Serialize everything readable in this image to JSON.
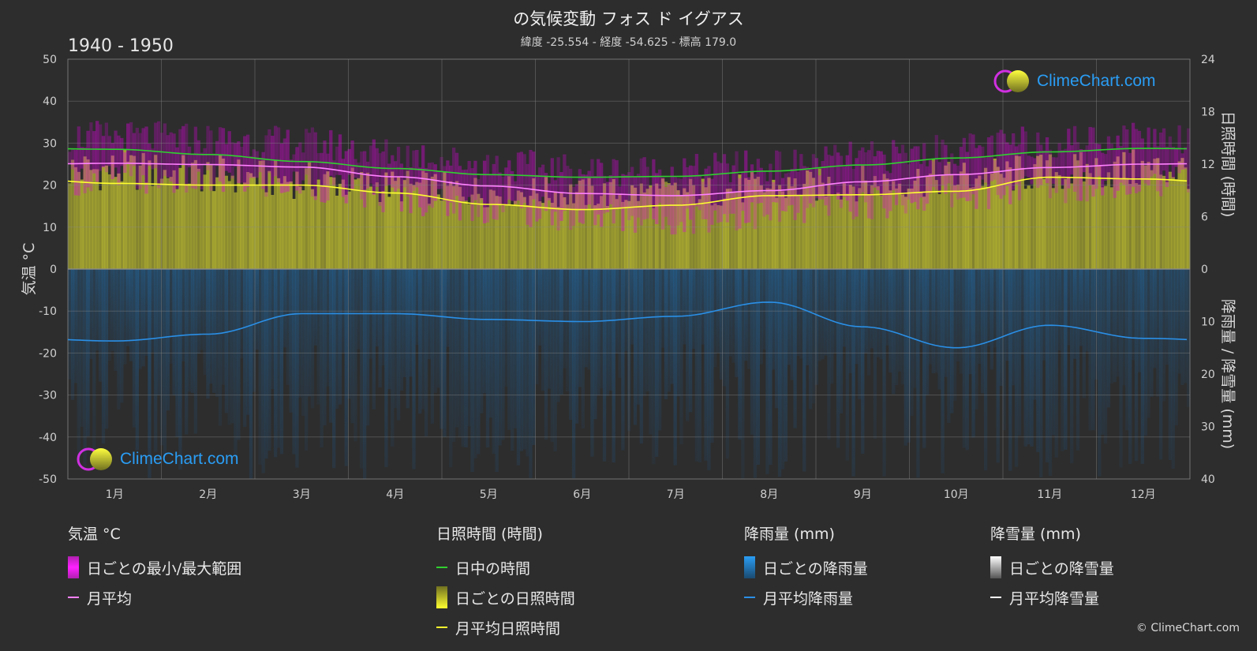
{
  "header": {
    "title": "の気候変動 フォス ド イグアス",
    "subtitle": "緯度 -25.554 - 経度 -54.625 - 標高 179.0",
    "period": "1940 - 1950"
  },
  "copyright": "© ClimeChart.com",
  "logo_text": "ClimeChart.com",
  "chart_data": {
    "type": "area",
    "months": [
      "1月",
      "2月",
      "3月",
      "4月",
      "5月",
      "6月",
      "7月",
      "8月",
      "9月",
      "10月",
      "11月",
      "12月"
    ],
    "axes": {
      "left": {
        "label": "気温 °C",
        "range": [
          -50,
          50
        ],
        "ticks": [
          50,
          40,
          30,
          20,
          10,
          0,
          -10,
          -20,
          -30,
          -40,
          -50
        ]
      },
      "right_top": {
        "label": "日照時間 (時間)",
        "range": [
          0,
          24
        ],
        "ticks": [
          24,
          18,
          12,
          6,
          0
        ]
      },
      "right_bottom": {
        "label": "降雨量 / 降雪量 (mm)",
        "range": [
          0,
          40
        ],
        "ticks": [
          0,
          10,
          20,
          30,
          40
        ]
      }
    },
    "grid": true,
    "series": {
      "temp_mean_monthly": [
        25.2,
        24.9,
        24.3,
        22.0,
        19.8,
        18.0,
        17.5,
        18.7,
        20.8,
        22.5,
        24.2,
        25.0
      ],
      "temp_daily_max": [
        31.5,
        31.0,
        30.0,
        27.5,
        25.0,
        23.5,
        23.5,
        24.5,
        26.5,
        28.5,
        30.5,
        31.5
      ],
      "temp_daily_min": [
        21.5,
        21.0,
        20.0,
        17.0,
        14.5,
        12.5,
        12.0,
        13.0,
        15.5,
        17.5,
        19.5,
        21.0
      ],
      "daylight_hours": [
        13.7,
        13.1,
        12.3,
        11.5,
        10.8,
        10.5,
        10.6,
        11.2,
        11.9,
        12.7,
        13.4,
        13.8
      ],
      "sunshine_hours_monthly": [
        9.8,
        9.6,
        9.6,
        8.7,
        7.4,
        6.8,
        7.3,
        8.4,
        8.5,
        8.9,
        10.5,
        10.3
      ],
      "rain_mm_monthly": [
        13.7,
        12.4,
        8.5,
        8.5,
        9.6,
        10.0,
        9.0,
        6.3,
        11.0,
        15.0,
        10.7,
        13.2
      ],
      "snow_mm_monthly": [
        0,
        0,
        0,
        0,
        0,
        0,
        0,
        0,
        0,
        0,
        0,
        0
      ]
    },
    "colors": {
      "temp_range": "#e000e0",
      "temp_mean": "#ff80ff",
      "daylight": "#30d030",
      "sunshine_bar": "#c8c832",
      "sunshine_mean": "#ffff30",
      "rain_bar": "#1f6fb0",
      "rain_mean": "#2a8fe6",
      "snow": "#ffffff"
    }
  },
  "legend": {
    "temperature": {
      "title": "気温 °C",
      "items": [
        "日ごとの最小/最大範囲",
        "月平均"
      ]
    },
    "sunshine": {
      "title": "日照時間 (時間)",
      "items": [
        "日中の時間",
        "日ごとの日照時間",
        "月平均日照時間"
      ]
    },
    "rain": {
      "title": "降雨量 (mm)",
      "items": [
        "日ごとの降雨量",
        "月平均降雨量"
      ]
    },
    "snow": {
      "title": "降雪量 (mm)",
      "items": [
        "日ごとの降雪量",
        "月平均降雪量"
      ]
    }
  }
}
